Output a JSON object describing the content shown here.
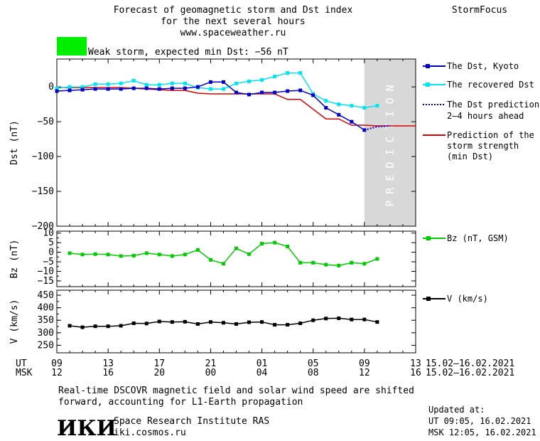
{
  "header": {
    "title_lines": [
      "Forecast of geomagnetic storm and Dst index",
      "for the next several hours",
      "www.spaceweather.ru"
    ],
    "brand": "StormFocus",
    "storm_text": "Weak storm, expected min Dst: −56 nT",
    "storm_color": "#00ee00"
  },
  "colors": {
    "dst": "#0000cc",
    "recovered": "#00e5f0",
    "prediction": "#0000cc",
    "strength": "#dd0000",
    "bz": "#00cc00",
    "v": "#000000",
    "prediction_band": "#d8d8d8"
  },
  "legend": {
    "dst": "The Dst, Kyoto",
    "recovered": "The recovered Dst",
    "prediction_lines": [
      "The Dst prediction",
      "2–4 hours ahead"
    ],
    "strength_lines": [
      "Prediction of the",
      "storm strength",
      "(min Dst)"
    ],
    "bz": "Bz (nT, GSM)",
    "v": "V (km/s)"
  },
  "prediction_label": "PREDICTION",
  "time_axis": {
    "ut_label": "UT",
    "msk_label": "MSK",
    "ut_ticks": [
      "09",
      "13",
      "17",
      "21",
      "01",
      "05",
      "09",
      "13"
    ],
    "msk_ticks": [
      "12",
      "16",
      "20",
      "00",
      "04",
      "08",
      "12",
      "16"
    ],
    "date_range_ut": "15.02–16.02.2021",
    "date_range_msk": "15.02–16.02.2021"
  },
  "footer": {
    "note_lines": [
      "Real-time DSCOVR magnetic field and solar wind speed are shifted",
      "forward, accounting for L1-Earth propagation"
    ],
    "institute": "Space Research Institute RAS",
    "site": "iki.cosmos.ru",
    "logo_text": "ИКИ",
    "updated_label": "Updated at:",
    "updated_ut": "UT  09:05, 16.02.2021",
    "updated_msk": "MSK 12:05, 16.02.2021"
  },
  "chart_data": [
    {
      "type": "line",
      "ylabel": "Dst (nT)",
      "xlim": [
        0,
        28
      ],
      "ylim": [
        -200,
        40
      ],
      "yticks": [
        0,
        -50,
        -100,
        -150,
        -200
      ],
      "prediction_start": 24,
      "series": [
        {
          "name": "The Dst, Kyoto",
          "x": [
            0,
            1,
            2,
            3,
            4,
            5,
            6,
            7,
            8,
            9,
            10,
            11,
            12,
            13,
            14,
            15,
            16,
            17,
            18,
            19,
            20,
            21,
            22,
            23,
            24
          ],
          "values": [
            -6,
            -5,
            -4,
            -3,
            -3,
            -3,
            -2,
            -2,
            -3,
            -2,
            -2,
            0,
            7,
            7,
            -8,
            -11,
            -8,
            -8,
            -6,
            -5,
            -12,
            -30,
            -40,
            -50,
            -62
          ]
        },
        {
          "name": "The recovered Dst",
          "x": [
            0,
            1,
            2,
            3,
            4,
            5,
            6,
            7,
            8,
            9,
            10,
            11,
            12,
            13,
            14,
            15,
            16,
            17,
            18,
            19,
            20,
            21,
            22,
            23,
            24,
            25
          ],
          "values": [
            -2,
            0,
            0,
            4,
            4,
            5,
            9,
            3,
            3,
            5,
            5,
            -1,
            -3,
            -3,
            5,
            8,
            10,
            15,
            20,
            20,
            -10,
            -20,
            -25,
            -27,
            -30,
            -27
          ]
        },
        {
          "name": "The Dst prediction 2–4 hours ahead",
          "x": [
            24,
            25,
            26
          ],
          "values": [
            -62,
            -57,
            -56
          ]
        },
        {
          "name": "Prediction of the storm strength (min Dst)",
          "x": [
            0,
            1,
            2,
            3,
            4,
            5,
            6,
            7,
            8,
            9,
            10,
            11,
            12,
            13,
            14,
            15,
            16,
            17,
            18,
            19,
            20,
            21,
            22,
            23,
            24,
            25,
            26,
            27,
            28
          ],
          "values": [
            -1,
            -1,
            -1,
            -1,
            -1,
            -1,
            -2,
            -3,
            -4,
            -5,
            -5,
            -9,
            -10,
            -10,
            -10,
            -10,
            -10,
            -10,
            -18,
            -18,
            -32,
            -46,
            -46,
            -55,
            -55,
            -56,
            -56,
            -56,
            -56
          ]
        }
      ]
    },
    {
      "type": "line",
      "ylabel": "Bz (nT)",
      "xlim": [
        0,
        28
      ],
      "ylim": [
        -18,
        11
      ],
      "yticks": [
        10,
        5,
        0,
        -5,
        -10,
        -15
      ],
      "series": [
        {
          "name": "Bz (nT, GSM)",
          "x": [
            1,
            2,
            3,
            4,
            5,
            6,
            7,
            8,
            9,
            10,
            11,
            12,
            13,
            14,
            15,
            16,
            17,
            18,
            19,
            20,
            21,
            22,
            23,
            24,
            25
          ],
          "values": [
            -0.5,
            -1.2,
            -1,
            -1.2,
            -2,
            -1.8,
            -0.5,
            -1.2,
            -2,
            -1.2,
            1.2,
            -4,
            -6,
            2,
            -1,
            4.5,
            5,
            3,
            -5.5,
            -5.5,
            -6.5,
            -7,
            -5.5,
            -6,
            -3.5
          ]
        }
      ]
    },
    {
      "type": "line",
      "ylabel": "V (km/s)",
      "xlim": [
        0,
        28
      ],
      "ylim": [
        220,
        470
      ],
      "yticks": [
        450,
        400,
        350,
        300,
        250
      ],
      "series": [
        {
          "name": "V (km/s)",
          "x": [
            1,
            2,
            3,
            4,
            5,
            6,
            7,
            8,
            9,
            10,
            11,
            12,
            13,
            14,
            15,
            16,
            17,
            18,
            19,
            20,
            21,
            22,
            23,
            24,
            25
          ],
          "values": [
            328,
            322,
            326,
            326,
            328,
            338,
            337,
            345,
            343,
            344,
            335,
            343,
            340,
            335,
            342,
            343,
            332,
            332,
            338,
            350,
            357,
            358,
            353,
            353,
            343
          ]
        }
      ]
    }
  ]
}
